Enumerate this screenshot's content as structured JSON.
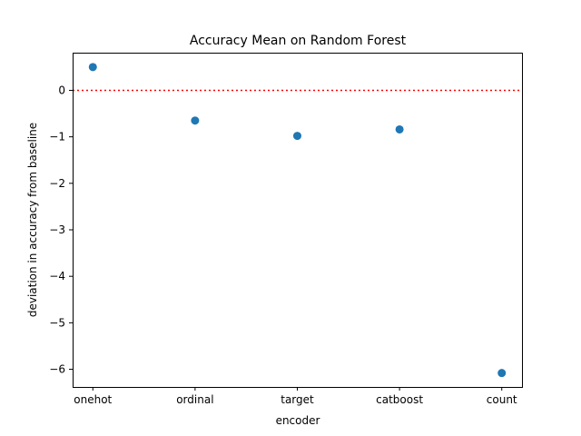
{
  "chart_data": {
    "type": "scatter",
    "title": "Accuracy Mean on Random Forest",
    "xlabel": "encoder",
    "ylabel": "deviation in accuracy from baseline",
    "categories": [
      "onehot",
      "ordinal",
      "target",
      "catboost",
      "count"
    ],
    "values": [
      0.5,
      -0.65,
      -0.98,
      -0.84,
      -6.08
    ],
    "ylim": [
      -6.38,
      0.81
    ],
    "yticks": [
      0,
      -1,
      -2,
      -3,
      -4,
      -5,
      -6
    ],
    "ytick_labels": [
      "0",
      "−1",
      "−2",
      "−3",
      "−4",
      "−5",
      "−6"
    ],
    "reference_line": {
      "y": 0,
      "color": "#ff0000",
      "style": "dotted"
    },
    "point_color": "#1f77b4",
    "grid": false,
    "legend": "none"
  }
}
